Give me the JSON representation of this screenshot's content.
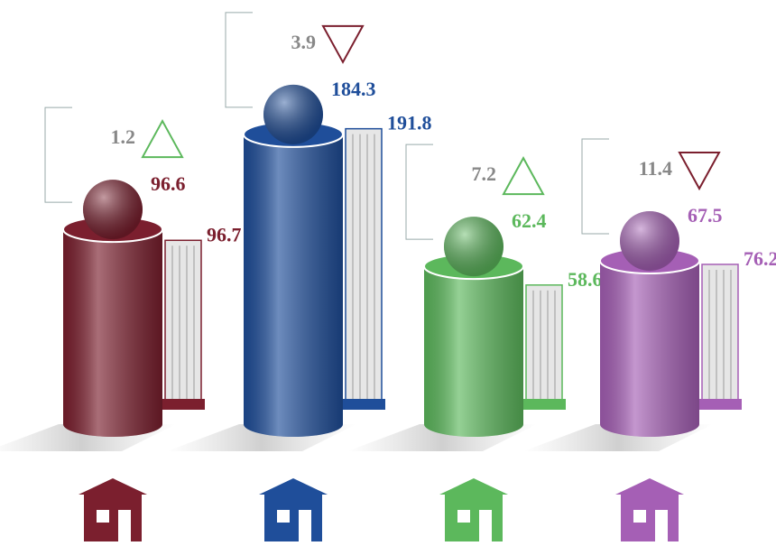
{
  "chart_data": {
    "type": "bar",
    "categories": [
      null,
      null,
      null,
      null
    ],
    "colors": [
      "#7b1f2e",
      "#1f4e9a",
      "#5cb85c",
      "#a55fb5"
    ],
    "series": [
      {
        "values": [
          96.6,
          184.3,
          62.4,
          67.5
        ]
      },
      {
        "values": [
          96.7,
          191.8,
          58.6,
          76.2
        ]
      }
    ],
    "changes": {
      "values": [
        1.2,
        3.9,
        7.2,
        11.4
      ],
      "directions": [
        "up",
        "down",
        "up",
        "down"
      ],
      "up_color": "#5cb85c",
      "down_color": "#7b1f2e",
      "color": "#888888"
    }
  }
}
